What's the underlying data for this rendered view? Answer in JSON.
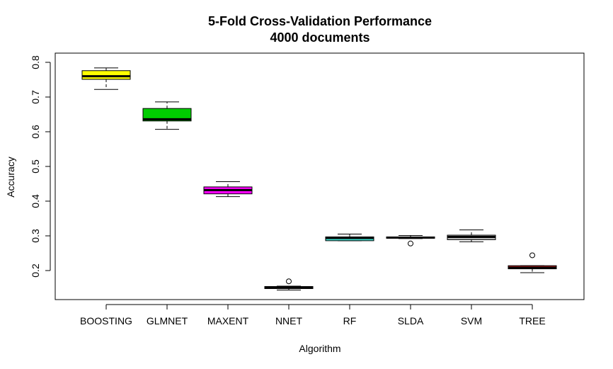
{
  "chart_data": {
    "type": "boxplot",
    "title": "5-Fold Cross-Validation Performance",
    "subtitle": "4000 documents",
    "xlabel": "Algorithm",
    "ylabel": "Accuracy",
    "ylim": [
      0.12,
      0.82
    ],
    "yticks": [
      "0.2",
      "0.3",
      "0.4",
      "0.5",
      "0.6",
      "0.7",
      "0.8"
    ],
    "grid": false,
    "categories": [
      "BOOSTING",
      "GLMNET",
      "MAXENT",
      "NNET",
      "RF",
      "SLDA",
      "SVM",
      "TREE"
    ],
    "boxes": [
      {
        "name": "BOOSTING",
        "color": "#ffff00",
        "min": 0.722,
        "q1": 0.751,
        "median": 0.76,
        "q3": 0.776,
        "max": 0.784,
        "outliers": []
      },
      {
        "name": "GLMNET",
        "color": "#00cd00",
        "min": 0.607,
        "q1": 0.631,
        "median": 0.636,
        "q3": 0.667,
        "max": 0.686,
        "outliers": []
      },
      {
        "name": "MAXENT",
        "color": "#ff00ff",
        "min": 0.413,
        "q1": 0.421,
        "median": 0.432,
        "q3": 0.441,
        "max": 0.456,
        "outliers": []
      },
      {
        "name": "NNET",
        "color": "#000000",
        "min": 0.144,
        "q1": 0.148,
        "median": 0.151,
        "q3": 0.154,
        "max": 0.155,
        "outliers": [
          0.169
        ]
      },
      {
        "name": "RF",
        "color": "#40e0d0",
        "min": 0.286,
        "q1": 0.286,
        "median": 0.294,
        "q3": 0.297,
        "max": 0.305,
        "outliers": []
      },
      {
        "name": "SLDA",
        "color": "#bebebe",
        "min": 0.292,
        "q1": 0.293,
        "median": 0.295,
        "q3": 0.297,
        "max": 0.301,
        "outliers": [
          0.278
        ]
      },
      {
        "name": "SVM",
        "color": "#bebebe",
        "min": 0.283,
        "q1": 0.289,
        "median": 0.297,
        "q3": 0.302,
        "max": 0.317,
        "outliers": []
      },
      {
        "name": "TREE",
        "color": "#b22222",
        "min": 0.194,
        "q1": 0.205,
        "median": 0.208,
        "q3": 0.214,
        "max": 0.214,
        "outliers": [
          0.244
        ]
      }
    ]
  }
}
